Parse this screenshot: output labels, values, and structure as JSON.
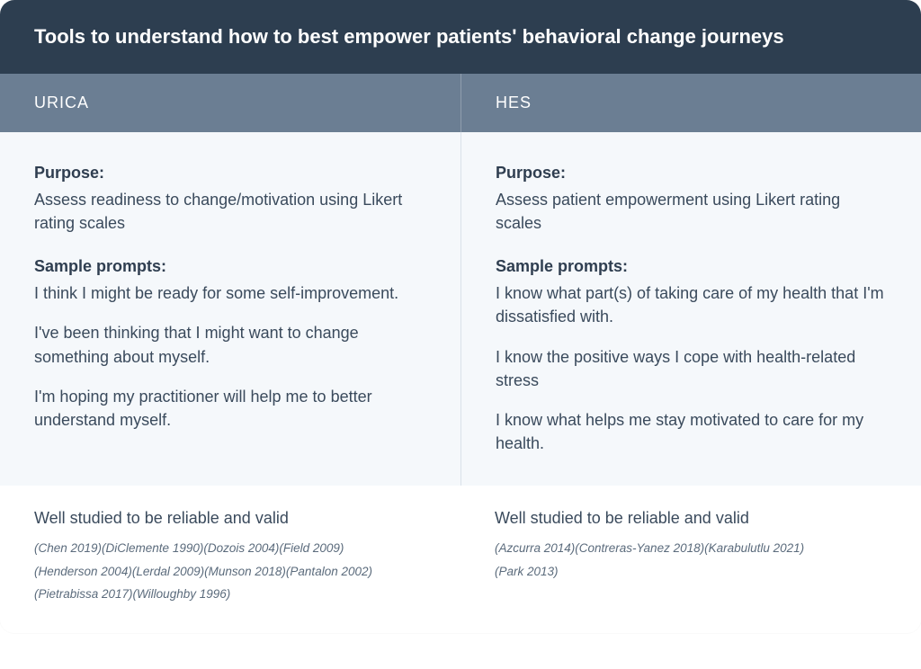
{
  "colors": {
    "header_bg": "#2d3e50",
    "subheader_bg": "#6b7e93",
    "body_bg": "#f5f8fb",
    "text_primary": "#3a4a5c",
    "text_heading": "#2f3e50",
    "divider": "#d9e1ea",
    "white": "#ffffff"
  },
  "title": "Tools to understand how to best empower patients' behavioral change journeys",
  "columns": [
    {
      "name": "URICA",
      "purpose_label": "Purpose:",
      "purpose_text": "Assess readiness to change/motivation using Likert rating scales",
      "sample_label": "Sample prompts:",
      "prompts": [
        "I think I might be ready for some self-improvement.",
        "I've been thinking that I might want to change something about myself.",
        "I'm hoping my practitioner will help me to better understand myself."
      ],
      "refs_title": "Well studied to be reliable and valid",
      "refs_lines": [
        "(Chen 2019)(DiClemente 1990)(Dozois 2004)(Field 2009)",
        "(Henderson 2004)(Lerdal 2009)(Munson 2018)(Pantalon 2002)",
        "(Pietrabissa 2017)(Willoughby 1996)"
      ]
    },
    {
      "name": "HES",
      "purpose_label": "Purpose:",
      "purpose_text": "Assess patient empowerment using Likert rating scales",
      "sample_label": "Sample prompts:",
      "prompts": [
        "I know what part(s) of taking care of my health that I'm dissatisfied with.",
        "I know the positive ways I cope with health-related stress",
        "I know what helps me stay motivated to care for my health."
      ],
      "refs_title": "Well studied to be reliable and valid",
      "refs_lines": [
        "(Azcurra 2014)(Contreras-Yanez 2018)(Karabulutlu 2021)",
        "(Park 2013)"
      ]
    }
  ]
}
